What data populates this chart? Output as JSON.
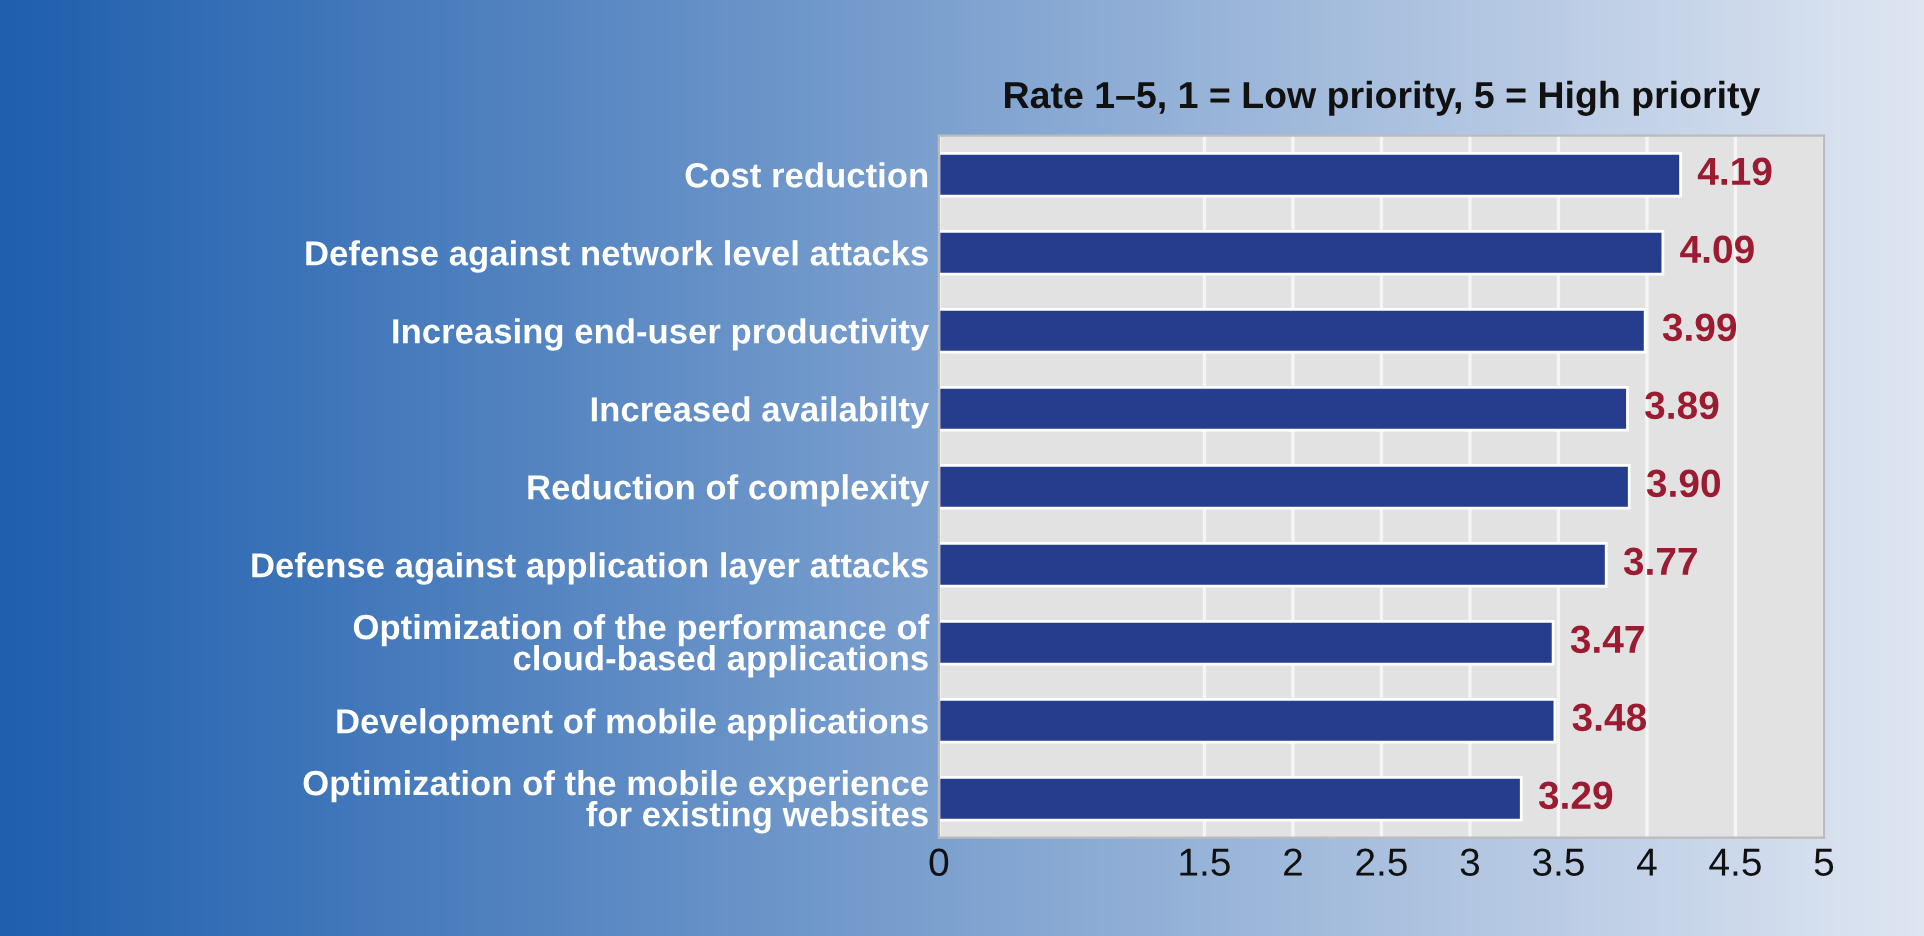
{
  "chart_data": {
    "type": "bar",
    "orientation": "horizontal",
    "title": "Rate 1–5, 1 = Low priority, 5 = High priority",
    "categories": [
      "Cost reduction",
      "Defense against network level attacks",
      "Increasing end-user productivity",
      "Increased availabilty",
      "Reduction of complexity",
      "Defense against application layer attacks",
      "Optimization of the performance of\ncloud-based applications",
      "Development of mobile applications",
      "Optimization of the mobile experience\nfor existing websites"
    ],
    "values": [
      4.19,
      4.09,
      3.99,
      3.89,
      3.9,
      3.77,
      3.47,
      3.48,
      3.29
    ],
    "color": "#253d8c",
    "value_labels": [
      "4.19",
      "4.09",
      "3.99",
      "3.89",
      "3.90",
      "3.77",
      "3.47",
      "3.48",
      "3.29"
    ],
    "xlim": [
      0,
      5
    ],
    "xticks": [
      0,
      1.5,
      2,
      2.5,
      3,
      3.5,
      4,
      4.5,
      5
    ],
    "grid": "x"
  }
}
